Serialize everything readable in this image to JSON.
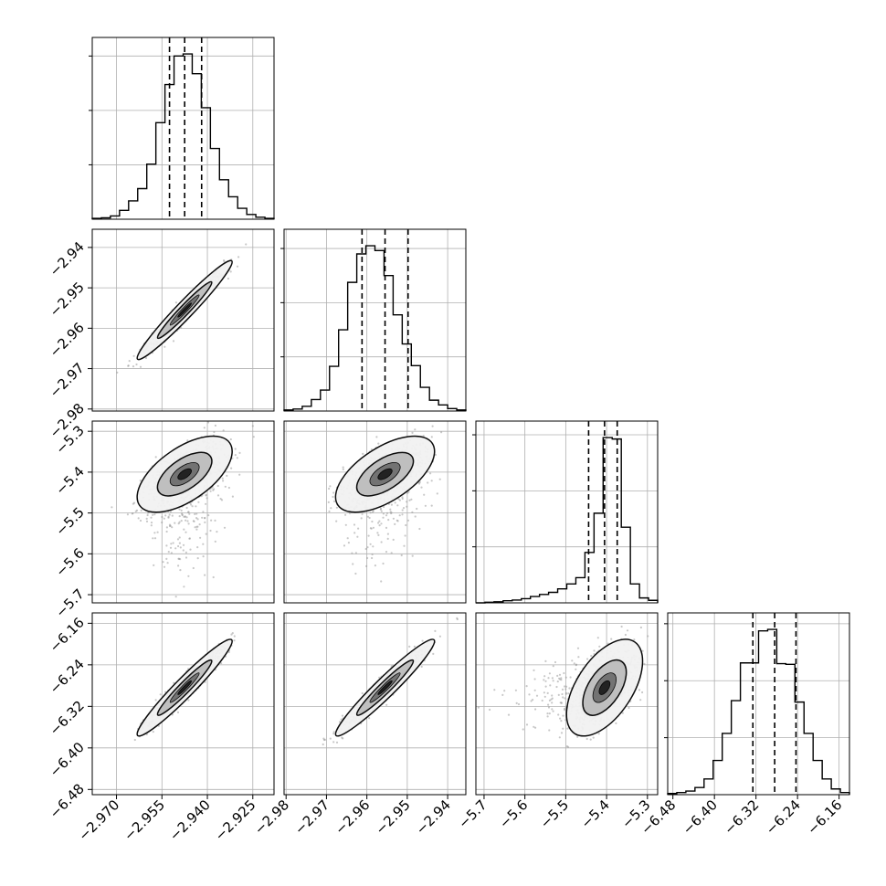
{
  "chart_data": {
    "type": "corner",
    "title": "",
    "n_params": 4,
    "colors": {
      "background": "#ffffff",
      "line": "#000000",
      "grid": "#b0b0b0",
      "scatter": "#9a9a9a"
    },
    "grid": true,
    "params": [
      {
        "range": [
          -2.978,
          -2.918
        ],
        "ticks": [
          -2.97,
          -2.955,
          -2.94,
          -2.925
        ],
        "tick_labels": [
          "−2.970",
          "−2.955",
          "−2.940",
          "−2.925"
        ],
        "mean": -2.9475,
        "sd": 0.0064,
        "quantiles": [
          -2.9525,
          -2.9475,
          -2.9419
        ],
        "hist_bins": [
          0.6,
          1.0,
          2.4,
          6.5,
          13.5,
          22.5,
          40.5,
          71.0,
          99.0,
          120.0,
          121.5,
          107.0,
          82.0,
          52.0,
          29.0,
          16.5,
          8.0,
          3.5,
          1.5,
          0.6
        ]
      },
      {
        "range": [
          -2.9805,
          -2.9355
        ],
        "ticks": [
          -2.98,
          -2.97,
          -2.96,
          -2.95,
          -2.94
        ],
        "tick_labels": [
          "−2.98",
          "−2.97",
          "−2.96",
          "−2.95",
          "−2.94"
        ],
        "mean": -2.9555,
        "sd": 0.005,
        "quantiles": [
          -2.9612,
          -2.9555,
          -2.9498
        ],
        "hist_bins": [
          0.8,
          1.5,
          3.5,
          8.5,
          15.5,
          33.0,
          60.0,
          95.0,
          116.0,
          122.0,
          118.5,
          100.0,
          71.0,
          49.5,
          33.5,
          17.5,
          8.0,
          4.5,
          1.8,
          0.8
        ]
      },
      {
        "range": [
          -5.72,
          -5.275
        ],
        "ticks": [
          -5.7,
          -5.6,
          -5.5,
          -5.4,
          -5.3
        ],
        "tick_labels": [
          "−5.7",
          "−5.6",
          "−5.5",
          "−5.4",
          "−5.3"
        ],
        "mean": -5.405,
        "sd": 0.038,
        "quantiles": [
          -5.444,
          -5.405,
          -5.374
        ],
        "hist_bins": [
          0.0,
          0.4,
          0.8,
          1.5,
          2.0,
          3.0,
          4.5,
          6.0,
          7.5,
          10.0,
          13.5,
          18.0,
          36.0,
          64.0,
          118.0,
          117.0,
          54.0,
          13.5,
          3.5,
          1.8
        ]
      },
      {
        "range": [
          -6.49,
          -6.14
        ],
        "ticks": [
          -6.48,
          -6.4,
          -6.32,
          -6.24,
          -6.16
        ],
        "tick_labels": [
          "−6.48",
          "−6.40",
          "−6.32",
          "−6.24",
          "−6.16"
        ],
        "mean": -6.284,
        "sd": 0.038,
        "quantiles": [
          -6.326,
          -6.284,
          -6.243
        ],
        "hist_bins": [
          0.8,
          1.5,
          2.5,
          5.0,
          11.0,
          24.0,
          43.0,
          66.0,
          92.5,
          92.5,
          115.0,
          116.0,
          92.0,
          91.5,
          65.0,
          43.0,
          24.0,
          11.0,
          4.0,
          1.5
        ]
      }
    ],
    "correlations": [
      [
        0,
        1,
        0.97
      ],
      [
        0,
        2,
        0.6
      ],
      [
        0,
        3,
        0.96
      ],
      [
        1,
        2,
        0.6
      ],
      [
        1,
        3,
        0.96
      ],
      [
        2,
        3,
        0.55
      ]
    ]
  }
}
